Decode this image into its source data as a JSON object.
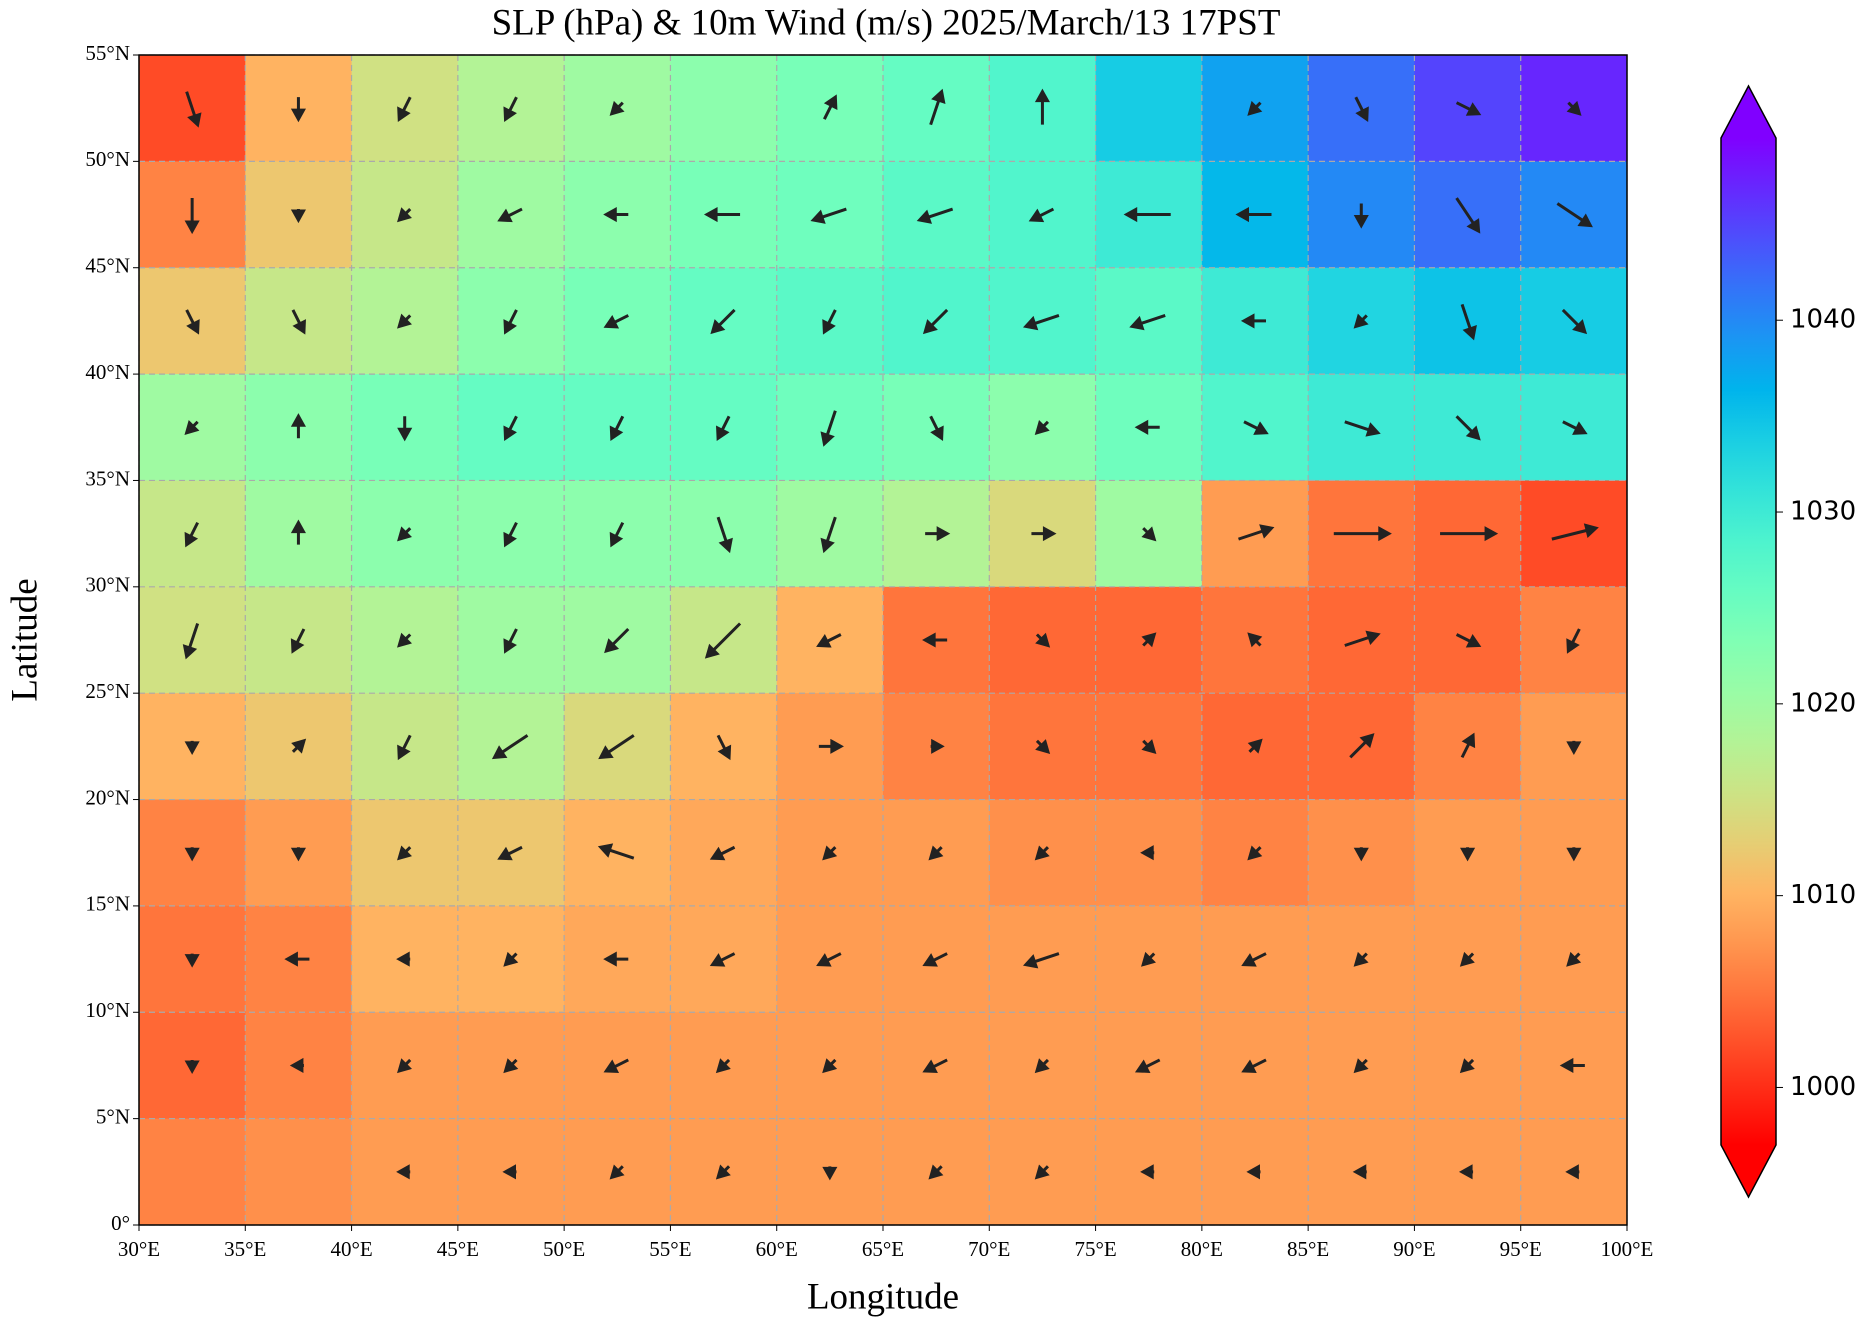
{
  "chart_data": {
    "type": "vector-map",
    "title": "SLP (hPa) & 10m Wind (m/s)  2025/March/13  17PST",
    "x_label": "Longitude",
    "y_label": "Latitude",
    "xlim": [
      30,
      100
    ],
    "ylim": [
      0,
      55
    ],
    "xticks": [
      {
        "value": 30,
        "label": "30°E"
      },
      {
        "value": 35,
        "label": "35°E"
      },
      {
        "value": 40,
        "label": "40°E"
      },
      {
        "value": 45,
        "label": "45°E"
      },
      {
        "value": 50,
        "label": "50°E"
      },
      {
        "value": 55,
        "label": "55°E"
      },
      {
        "value": 60,
        "label": "60°E"
      },
      {
        "value": 65,
        "label": "65°E"
      },
      {
        "value": 70,
        "label": "70°E"
      },
      {
        "value": 75,
        "label": "75°E"
      },
      {
        "value": 80,
        "label": "80°E"
      },
      {
        "value": 85,
        "label": "85°E"
      },
      {
        "value": 90,
        "label": "90°E"
      },
      {
        "value": 95,
        "label": "95°E"
      },
      {
        "value": 100,
        "label": "100°E"
      }
    ],
    "yticks": [
      {
        "value": 0,
        "label": "0°"
      },
      {
        "value": 5,
        "label": "5°N"
      },
      {
        "value": 10,
        "label": "10°N"
      },
      {
        "value": 15,
        "label": "15°N"
      },
      {
        "value": 20,
        "label": "20°N"
      },
      {
        "value": 25,
        "label": "25°N"
      },
      {
        "value": 30,
        "label": "30°N"
      },
      {
        "value": 35,
        "label": "35°N"
      },
      {
        "value": 40,
        "label": "40°N"
      },
      {
        "value": 45,
        "label": "45°N"
      },
      {
        "value": 50,
        "label": "50°N"
      },
      {
        "value": 55,
        "label": "55°N"
      }
    ],
    "grid": true,
    "colorbar": {
      "colormap": "rainbow_r",
      "clim": [
        997,
        1049.5
      ],
      "ticks": [
        1000,
        1010,
        1020,
        1030,
        1040
      ]
    },
    "lon": [
      32.5,
      37.5,
      42.5,
      47.5,
      52.5,
      57.5,
      62.5,
      67.5,
      72.5,
      77.5,
      82.5,
      87.5,
      92.5,
      97.5
    ],
    "lat": [
      52.5,
      47.5,
      42.5,
      37.5,
      32.5,
      27.5,
      22.5,
      17.5,
      12.5,
      7.5,
      2.5
    ],
    "slp": [
      [
        1002,
        1010,
        1015,
        1018,
        1020,
        1022,
        1024,
        1026,
        1028,
        1034,
        1038,
        1042,
        1045,
        1047
      ],
      [
        1006,
        1012,
        1016,
        1020,
        1022,
        1024,
        1025,
        1027,
        1028,
        1030,
        1036,
        1040,
        1042,
        1040
      ],
      [
        1012,
        1016,
        1018,
        1022,
        1024,
        1026,
        1027,
        1028,
        1028,
        1027,
        1030,
        1033,
        1035,
        1034
      ],
      [
        1020,
        1022,
        1024,
        1026,
        1026,
        1026,
        1025,
        1024,
        1022,
        1025,
        1028,
        1030,
        1030,
        1030
      ],
      [
        1016,
        1020,
        1022,
        1022,
        1022,
        1022,
        1020,
        1018,
        1014,
        1020,
        1008,
        1005,
        1004,
        1002
      ],
      [
        1015,
        1016,
        1018,
        1020,
        1020,
        1016,
        1010,
        1005,
        1004,
        1004,
        1005,
        1004,
        1004,
        1006
      ],
      [
        1010,
        1012,
        1016,
        1018,
        1014,
        1010,
        1008,
        1006,
        1005,
        1005,
        1004,
        1004,
        1006,
        1008
      ],
      [
        1006,
        1008,
        1012,
        1012,
        1010,
        1009,
        1008,
        1008,
        1007,
        1007,
        1006,
        1007,
        1008,
        1008
      ],
      [
        1005,
        1006,
        1010,
        1010,
        1009,
        1009,
        1008,
        1008,
        1008,
        1008,
        1008,
        1008,
        1008,
        1008
      ],
      [
        1004,
        1006,
        1008,
        1008,
        1008,
        1008,
        1008,
        1008,
        1008,
        1008,
        1008,
        1008,
        1008,
        1008
      ],
      [
        1006,
        1007,
        1008,
        1008,
        1008,
        1008,
        1008,
        1008,
        1008,
        1008,
        1008,
        1008,
        1008,
        1008
      ]
    ],
    "wind": {
      "u": [
        [
          1,
          0,
          -1,
          -1,
          -1,
          0,
          1,
          1,
          0,
          0,
          -1,
          1,
          2,
          1
        ],
        [
          0,
          0,
          -1,
          -2,
          -2,
          -3,
          -3,
          -3,
          -2,
          -4,
          -3,
          0,
          2,
          3
        ],
        [
          1,
          1,
          -1,
          -1,
          -2,
          -2,
          -1,
          -2,
          -3,
          -3,
          -2,
          -1,
          1,
          2
        ],
        [
          -1,
          0,
          0,
          -1,
          -1,
          -1,
          -1,
          1,
          -1,
          -2,
          2,
          3,
          2,
          2
        ],
        [
          -1,
          0,
          -1,
          -1,
          -1,
          1,
          -1,
          2,
          2,
          1,
          3,
          5,
          5,
          4
        ],
        [
          -1,
          -1,
          -1,
          -1,
          -2,
          -3,
          -2,
          -2,
          1,
          1,
          -1,
          3,
          2,
          -1
        ],
        [
          0,
          1,
          -1,
          -3,
          -3,
          1,
          2,
          1,
          1,
          1,
          1,
          2,
          1,
          0
        ],
        [
          0,
          0,
          -1,
          -2,
          -3,
          -2,
          -1,
          -1,
          -1,
          -1,
          -1,
          0,
          0,
          0
        ],
        [
          0,
          -2,
          -1,
          -1,
          -2,
          -2,
          -2,
          -2,
          -3,
          -1,
          -2,
          -1,
          -1,
          -1
        ],
        [
          0,
          -1,
          -1,
          -1,
          -2,
          -1,
          -1,
          -2,
          -1,
          -2,
          -2,
          -1,
          -1,
          -2
        ],
        [
          0,
          0,
          -1,
          -1,
          -1,
          -1,
          0,
          -1,
          -1,
          -1,
          -1,
          -1,
          -1,
          -1
        ]
      ],
      "v": [
        [
          -3,
          -2,
          -2,
          -2,
          -1,
          0,
          2,
          3,
          3,
          0,
          -1,
          -2,
          -1,
          -1
        ],
        [
          -3,
          -1,
          -1,
          -1,
          0,
          0,
          -1,
          -1,
          -1,
          0,
          0,
          -2,
          -3,
          -2
        ],
        [
          -2,
          -2,
          -1,
          -2,
          -1,
          -2,
          -2,
          -2,
          -1,
          -1,
          0,
          -1,
          -3,
          -2
        ],
        [
          -1,
          2,
          -2,
          -2,
          -2,
          -2,
          -3,
          -2,
          -1,
          0,
          -1,
          -1,
          -2,
          -1
        ],
        [
          -2,
          2,
          -1,
          -2,
          -2,
          -3,
          -3,
          0,
          0,
          -1,
          1,
          0,
          0,
          1
        ],
        [
          -3,
          -2,
          -1,
          -2,
          -2,
          -3,
          -1,
          0,
          -1,
          1,
          1,
          1,
          -1,
          -2
        ],
        [
          -1,
          1,
          -2,
          -2,
          -2,
          -2,
          0,
          0,
          -1,
          -1,
          1,
          2,
          2,
          -1
        ],
        [
          -1,
          -1,
          -1,
          -1,
          1,
          -1,
          -1,
          -1,
          -1,
          0,
          -1,
          -1,
          -1,
          -1
        ],
        [
          -1,
          0,
          0,
          -1,
          0,
          -1,
          -1,
          -1,
          -1,
          -1,
          -1,
          -1,
          -1,
          -1
        ],
        [
          -1,
          0,
          -1,
          -1,
          -1,
          -1,
          -1,
          -1,
          -1,
          -1,
          -1,
          -1,
          -1,
          0
        ],
        [
          0,
          0,
          0,
          0,
          -1,
          -1,
          -1,
          -1,
          -1,
          0,
          0,
          0,
          0,
          0
        ]
      ]
    }
  }
}
